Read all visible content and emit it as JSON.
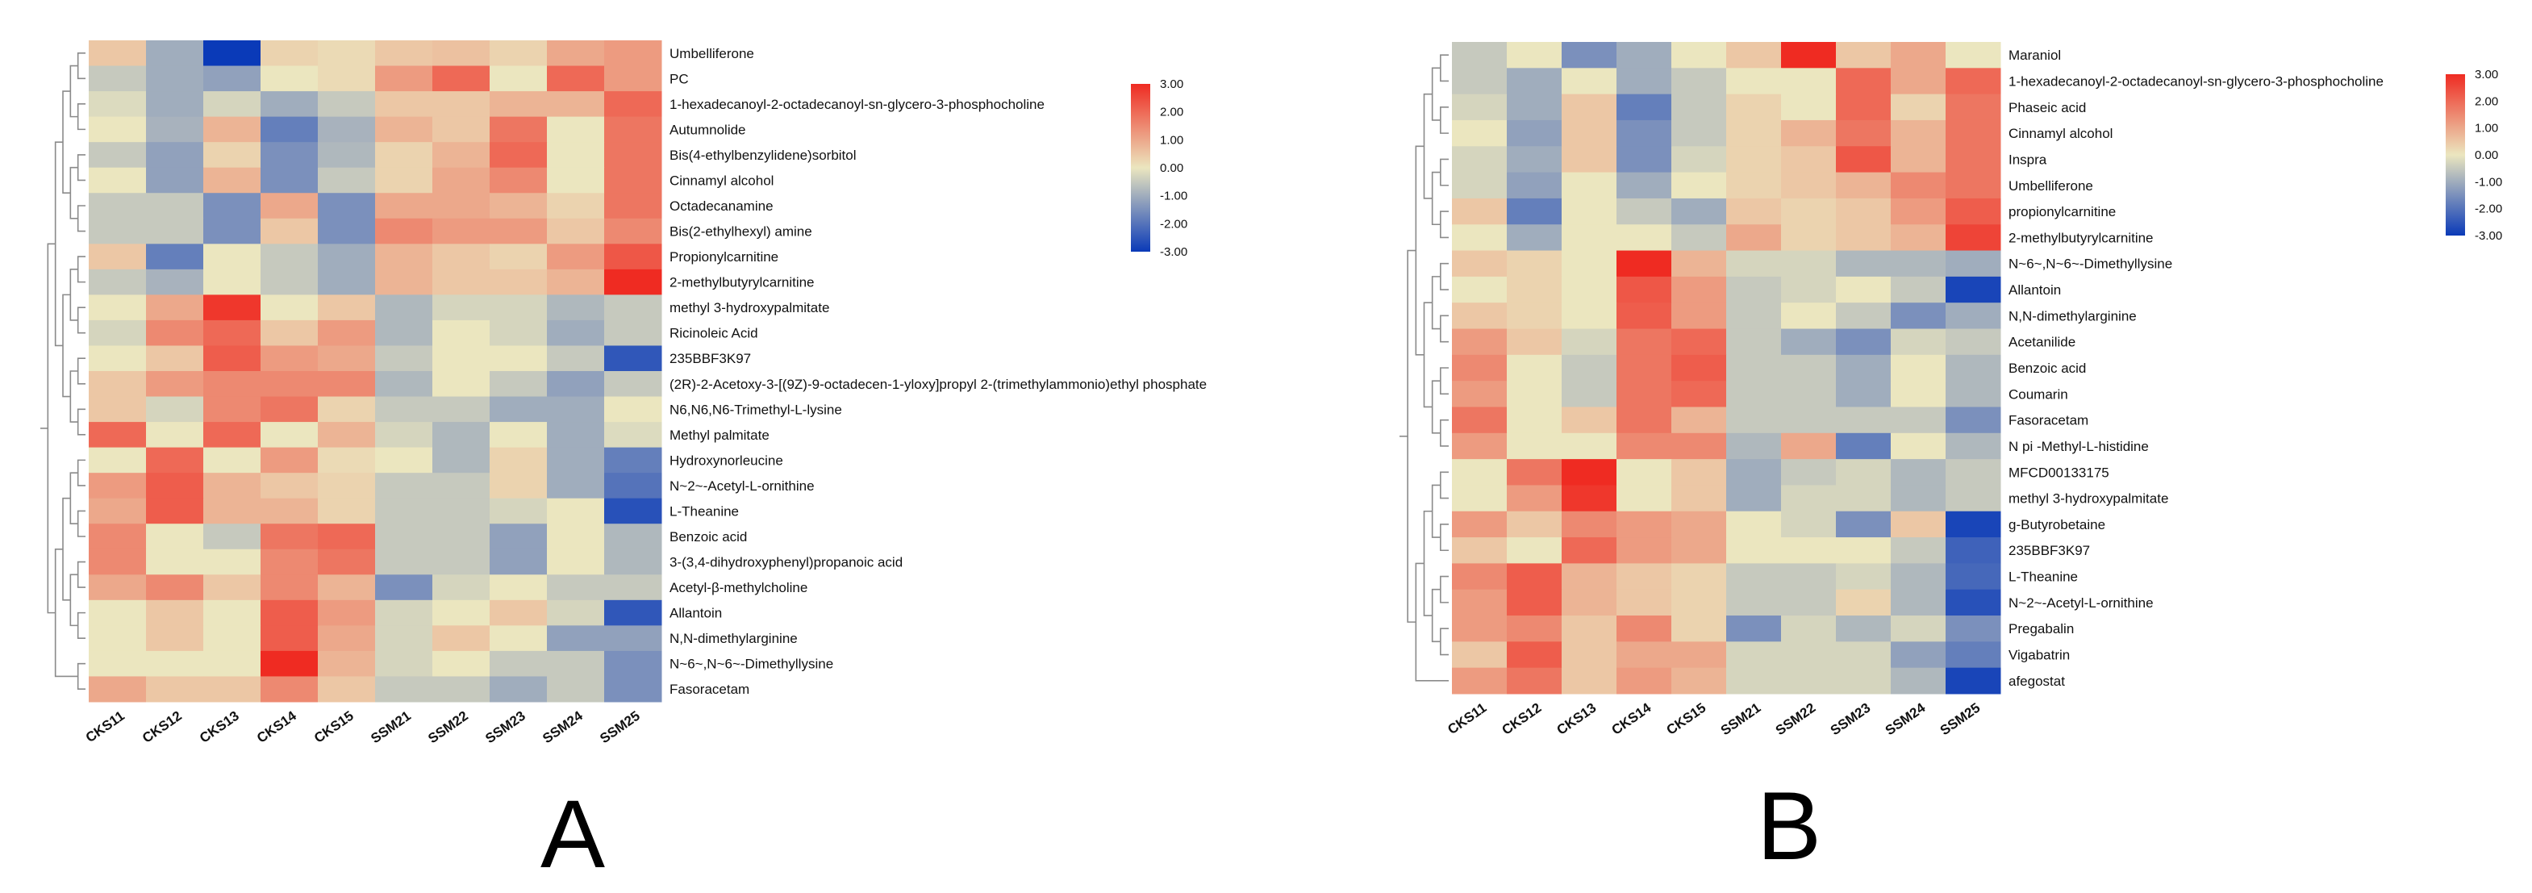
{
  "chart_data": [
    {
      "type": "heatmap",
      "panel_label": "A",
      "columns": [
        "CKS11",
        "CKS12",
        "CKS13",
        "CKS14",
        "CKS15",
        "SSM21",
        "SSM22",
        "SSM23",
        "SSM24",
        "SSM25"
      ],
      "rows": [
        "Umbelliferone",
        "PC",
        "1-hexadecanoyl-2-octadecanoyl-sn-glycero-3-phosphocholine",
        "Autumnolide",
        "Bis(4-ethylbenzylidene)sorbitol",
        "Cinnamyl alcohol",
        "Octadecanamine",
        "Bis(2-ethylhexyl) amine",
        "Propionylcarnitine",
        "2-methylbutyrylcarnitine",
        "methyl 3-hydroxypalmitate",
        "Ricinoleic Acid",
        "235BBF3K97",
        "(2R)-2-Acetoxy-3-[(9Z)-9-octadecen-1-yloxy]propyl 2-(trimethylammonio)ethyl phosphate",
        "N6,N6,N6-Trimethyl-L-lysine",
        "Methyl palmitate",
        "Hydroxynorleucine",
        "N~2~-Acetyl-L-ornithine",
        "L-Theanine",
        "Benzoic acid",
        "3-(3,4-dihydroxyphenyl)propanoic acid",
        "Acetyl-β-methylcholine",
        "Allantoin",
        "N,N-dimethylarginine",
        "N~6~,N~6~-Dimethyllysine",
        "Fasoracetam"
      ],
      "values": [
        [
          0.5,
          -1.0,
          -3.0,
          0.3,
          0.2,
          0.5,
          0.6,
          0.3,
          1.0,
          1.2
        ],
        [
          -0.5,
          -1.0,
          -1.2,
          0.0,
          0.2,
          1.2,
          2.0,
          0.0,
          2.0,
          1.2
        ],
        [
          -0.2,
          -1.0,
          -0.3,
          -1.0,
          -0.5,
          0.5,
          0.5,
          0.8,
          0.8,
          2.0
        ],
        [
          0.0,
          -0.9,
          0.8,
          -1.8,
          -0.9,
          0.8,
          0.5,
          1.8,
          0.0,
          1.8
        ],
        [
          -0.5,
          -1.2,
          0.3,
          -1.5,
          -0.8,
          0.3,
          0.8,
          2.0,
          0.0,
          1.8
        ],
        [
          0.0,
          -1.2,
          0.8,
          -1.5,
          -0.5,
          0.3,
          1.0,
          1.5,
          0.0,
          1.8
        ],
        [
          -0.5,
          -0.5,
          -1.5,
          1.0,
          -1.5,
          1.0,
          1.0,
          0.8,
          0.3,
          1.8
        ],
        [
          -0.5,
          -0.5,
          -1.5,
          0.5,
          -1.5,
          1.5,
          1.2,
          1.2,
          0.5,
          1.5
        ],
        [
          0.5,
          -1.8,
          0.0,
          -0.5,
          -1.0,
          0.8,
          0.5,
          0.3,
          1.2,
          2.3
        ],
        [
          -0.5,
          -0.9,
          0.0,
          -0.5,
          -1.0,
          0.8,
          0.5,
          0.5,
          0.8,
          3.0
        ],
        [
          0.0,
          1.0,
          2.8,
          0.0,
          0.5,
          -0.8,
          -0.3,
          -0.3,
          -0.8,
          -0.5
        ],
        [
          -0.3,
          1.5,
          2.0,
          0.5,
          1.2,
          -0.8,
          0.0,
          -0.3,
          -1.0,
          -0.5
        ],
        [
          0.0,
          0.5,
          2.2,
          1.2,
          1.0,
          -0.5,
          0.0,
          0.0,
          -0.5,
          -2.5
        ],
        [
          0.5,
          1.2,
          1.5,
          1.5,
          1.5,
          -0.8,
          0.0,
          -0.5,
          -1.2,
          -0.5
        ],
        [
          0.5,
          -0.3,
          1.5,
          1.8,
          0.3,
          -0.5,
          -0.5,
          -1.0,
          -1.0,
          0.0
        ],
        [
          2.0,
          0.0,
          2.0,
          0.0,
          0.8,
          -0.3,
          -0.8,
          0.0,
          -1.0,
          -0.2
        ],
        [
          0.0,
          2.0,
          0.0,
          1.2,
          0.2,
          0.0,
          -0.8,
          0.3,
          -1.0,
          -1.8
        ],
        [
          1.2,
          2.2,
          0.8,
          0.5,
          0.3,
          -0.5,
          -0.5,
          0.3,
          -1.0,
          -2.0
        ],
        [
          1.0,
          2.2,
          0.8,
          0.8,
          0.3,
          -0.5,
          -0.5,
          -0.3,
          0.0,
          -2.6
        ],
        [
          1.5,
          0.0,
          -0.5,
          1.8,
          2.0,
          -0.5,
          -0.5,
          -1.2,
          0.0,
          -0.8
        ],
        [
          1.5,
          0.0,
          0.0,
          1.5,
          1.8,
          -0.5,
          -0.5,
          -1.2,
          0.0,
          -0.8
        ],
        [
          1.0,
          1.5,
          0.5,
          1.5,
          0.8,
          -1.5,
          -0.3,
          0.0,
          -0.5,
          -0.5
        ],
        [
          0.0,
          0.5,
          0.0,
          2.2,
          1.2,
          -0.3,
          0.0,
          0.5,
          -0.3,
          -2.5
        ],
        [
          0.0,
          0.5,
          0.0,
          2.2,
          1.0,
          -0.3,
          0.5,
          0.0,
          -1.2,
          -1.2
        ],
        [
          0.0,
          0.0,
          0.0,
          3.0,
          0.8,
          -0.3,
          0.0,
          -0.5,
          -0.5,
          -1.5
        ],
        [
          1.0,
          0.5,
          0.5,
          1.5,
          0.5,
          -0.5,
          -0.5,
          -1.0,
          -0.5,
          -1.5
        ]
      ],
      "color_scale": {
        "min": -3.0,
        "max": 3.0,
        "ticks": [
          "3.00",
          "2.00",
          "1.00",
          "0.00",
          "-1.00",
          "-2.00",
          "-3.00"
        ]
      },
      "colors": {
        "low": "#0a3ab8",
        "mid": "#ebe6bf",
        "high": "#ef2b22"
      }
    },
    {
      "type": "heatmap",
      "panel_label": "B",
      "columns": [
        "CKS11",
        "CKS12",
        "CKS13",
        "CKS14",
        "CKS15",
        "SSM21",
        "SSM22",
        "SSM23",
        "SSM24",
        "SSM25"
      ],
      "rows": [
        "Maraniol",
        "1-hexadecanoyl-2-octadecanoyl-sn-glycero-3-phosphocholine",
        "Phaseic acid",
        "Cinnamyl alcohol",
        "Inspra",
        "Umbelliferone",
        "propionylcarnitine",
        "2-methylbutyrylcarnitine",
        "N~6~,N~6~-Dimethyllysine",
        "Allantoin",
        "N,N-dimethylarginine",
        "Acetanilide",
        "Benzoic acid",
        "Coumarin",
        "Fasoracetam",
        "N pi -Methyl-L-histidine",
        "MFCD00133175",
        "methyl 3-hydroxypalmitate",
        "g-Butyrobetaine",
        "235BBF3K97",
        "L-Theanine",
        "N~2~-Acetyl-L-ornithine",
        "Pregabalin",
        "Vigabatrin",
        "afegostat"
      ],
      "values": [
        [
          -0.5,
          0.0,
          -1.5,
          -1.0,
          0.0,
          0.5,
          3.0,
          0.5,
          1.0,
          0.0
        ],
        [
          -0.5,
          -1.0,
          0.0,
          -1.0,
          -0.5,
          0.0,
          0.0,
          2.0,
          1.0,
          2.0
        ],
        [
          -0.3,
          -1.0,
          0.5,
          -1.8,
          -0.5,
          0.3,
          0.0,
          2.0,
          0.3,
          1.8
        ],
        [
          0.0,
          -1.2,
          0.5,
          -1.5,
          -0.5,
          0.3,
          0.8,
          1.8,
          0.8,
          1.8
        ],
        [
          -0.3,
          -1.0,
          0.5,
          -1.5,
          -0.3,
          0.3,
          0.5,
          2.3,
          0.8,
          1.8
        ],
        [
          -0.3,
          -1.2,
          0.0,
          -1.0,
          0.0,
          0.3,
          0.5,
          0.8,
          1.5,
          1.8
        ],
        [
          0.5,
          -1.8,
          0.0,
          -0.5,
          -1.0,
          0.5,
          0.3,
          0.5,
          1.2,
          2.2
        ],
        [
          0.0,
          -1.0,
          0.0,
          0.0,
          -0.5,
          1.0,
          0.3,
          0.5,
          0.8,
          2.6
        ],
        [
          0.5,
          0.3,
          0.0,
          3.0,
          0.8,
          -0.3,
          -0.3,
          -0.8,
          -0.8,
          -1.0
        ],
        [
          0.0,
          0.3,
          0.0,
          2.3,
          1.2,
          -0.5,
          -0.3,
          0.0,
          -0.5,
          -2.8
        ],
        [
          0.5,
          0.3,
          0.0,
          2.2,
          1.2,
          -0.5,
          0.0,
          -0.5,
          -1.5,
          -1.0
        ],
        [
          1.2,
          0.5,
          -0.3,
          1.8,
          2.0,
          -0.5,
          -1.0,
          -1.5,
          -0.3,
          -0.5
        ],
        [
          1.5,
          0.0,
          -0.5,
          1.8,
          2.2,
          -0.5,
          -0.5,
          -1.0,
          0.0,
          -0.8
        ],
        [
          1.2,
          0.0,
          -0.5,
          1.8,
          2.0,
          -0.5,
          -0.5,
          -1.0,
          0.0,
          -0.8
        ],
        [
          1.8,
          0.0,
          0.5,
          1.8,
          0.8,
          -0.5,
          -0.5,
          -0.5,
          -0.5,
          -1.5
        ],
        [
          1.2,
          0.0,
          0.0,
          1.5,
          1.5,
          -0.8,
          1.0,
          -1.8,
          0.0,
          -0.8
        ],
        [
          0.0,
          1.8,
          3.0,
          0.0,
          0.5,
          -1.0,
          -0.5,
          -0.3,
          -0.8,
          -0.5
        ],
        [
          0.0,
          1.2,
          2.8,
          0.0,
          0.5,
          -1.0,
          -0.3,
          -0.3,
          -0.8,
          -0.5
        ],
        [
          1.2,
          0.5,
          1.5,
          1.2,
          1.0,
          0.0,
          -0.3,
          -1.5,
          0.5,
          -2.8
        ],
        [
          0.5,
          0.0,
          2.0,
          1.2,
          1.0,
          0.0,
          0.0,
          0.0,
          -0.5,
          -2.3
        ],
        [
          1.5,
          2.2,
          0.8,
          0.5,
          0.3,
          -0.5,
          -0.5,
          -0.3,
          -0.8,
          -2.2
        ],
        [
          1.2,
          2.2,
          0.8,
          0.5,
          0.3,
          -0.5,
          -0.5,
          0.3,
          -0.8,
          -2.6
        ],
        [
          1.2,
          1.5,
          0.5,
          1.5,
          0.3,
          -1.5,
          -0.3,
          -0.8,
          -0.3,
          -1.5
        ],
        [
          0.5,
          2.2,
          0.5,
          1.0,
          1.0,
          -0.3,
          -0.3,
          -0.3,
          -1.2,
          -1.8
        ],
        [
          1.2,
          1.8,
          0.5,
          1.2,
          0.8,
          -0.3,
          -0.3,
          -0.3,
          -0.8,
          -2.8
        ]
      ],
      "color_scale": {
        "min": -3.0,
        "max": 3.0,
        "ticks": [
          "3.00",
          "2.00",
          "1.00",
          "0.00",
          "-1.00",
          "-2.00",
          "-3.00"
        ]
      },
      "colors": {
        "low": "#0a3ab8",
        "mid": "#ebe6bf",
        "high": "#ef2b22"
      }
    }
  ]
}
